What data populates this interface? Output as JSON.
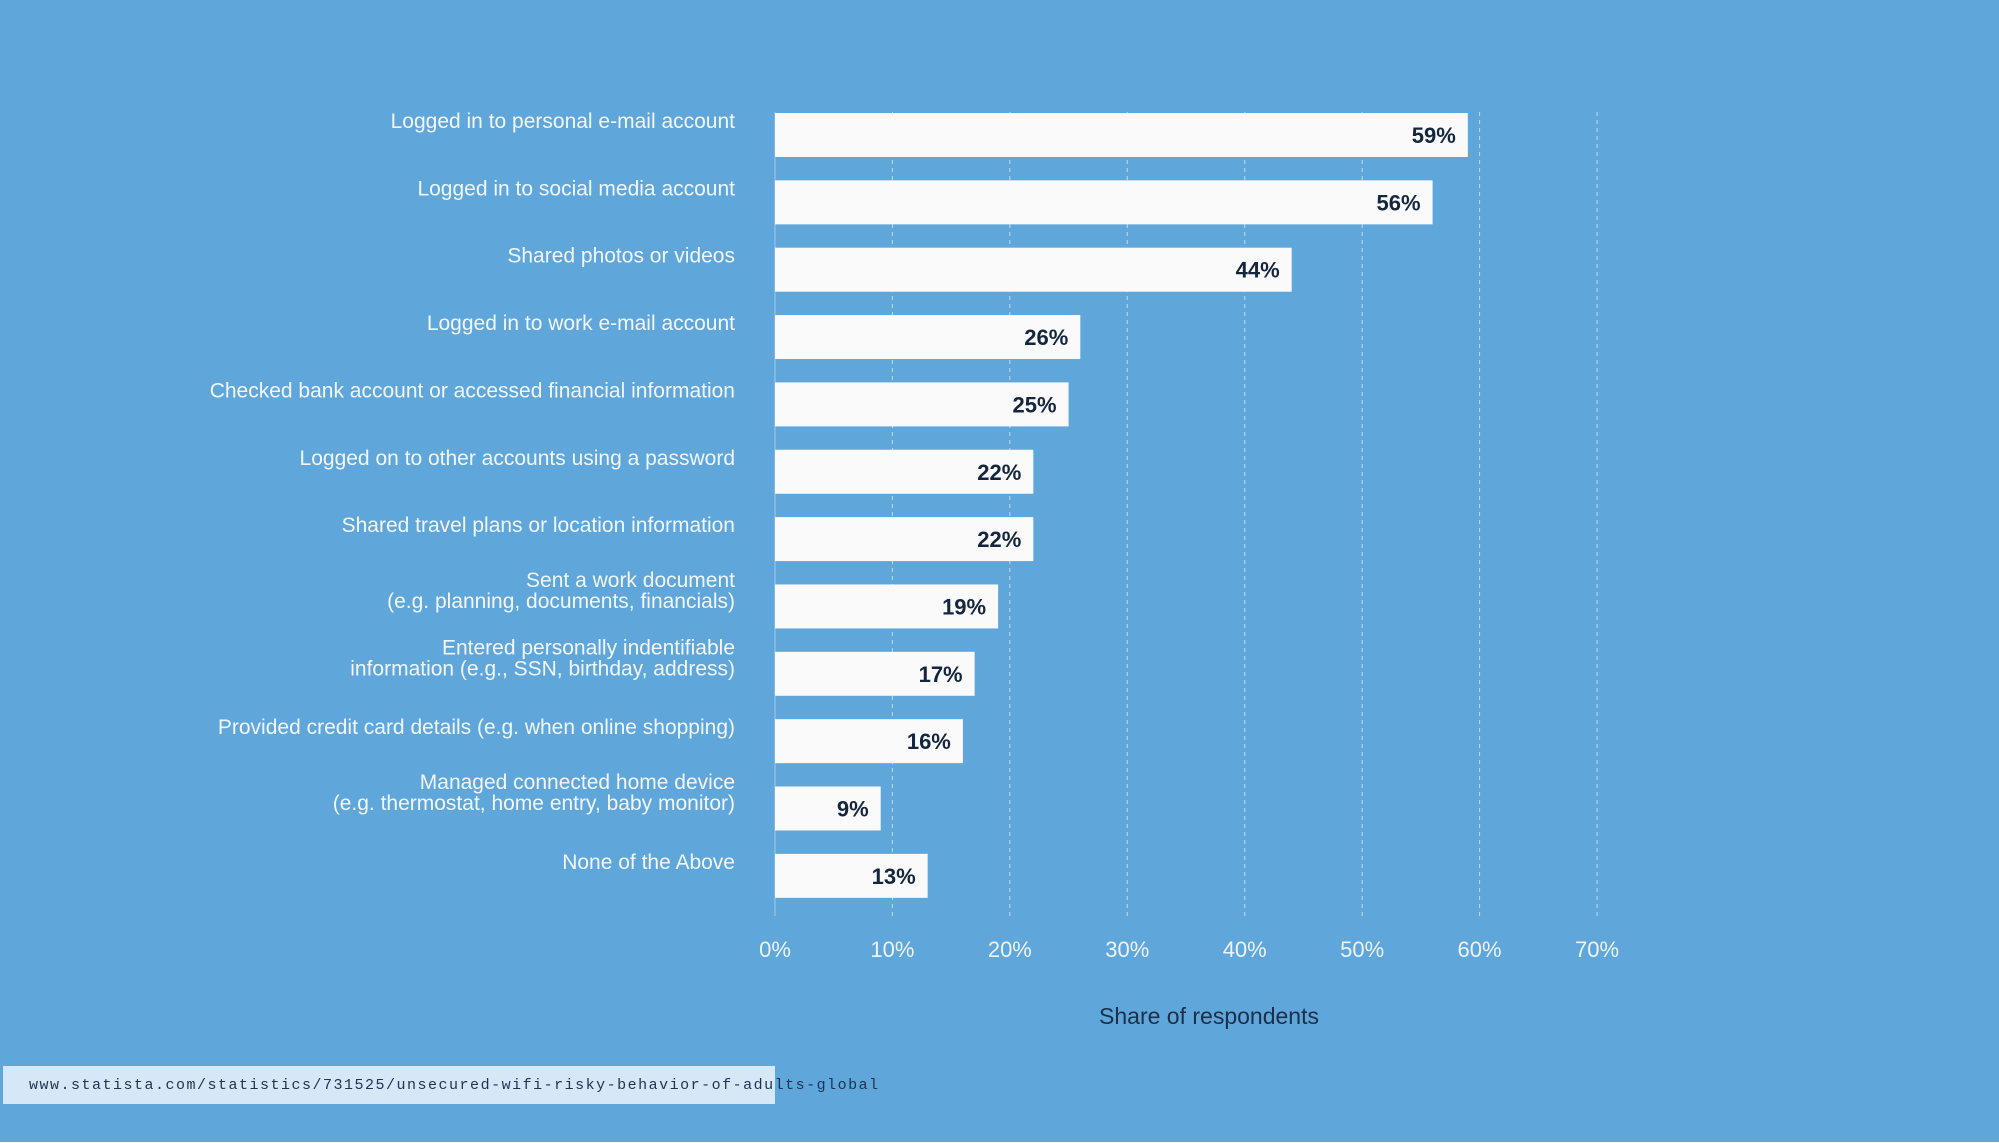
{
  "chart_data": {
    "type": "bar",
    "orientation": "horizontal",
    "categories": [
      [
        "Logged in to personal e-mail account"
      ],
      [
        "Logged in to social media account"
      ],
      [
        "Shared photos or videos"
      ],
      [
        "Logged in to work e-mail account"
      ],
      [
        "Checked bank account or accessed financial information"
      ],
      [
        "Logged on to other accounts using a password"
      ],
      [
        "Shared travel plans or location information"
      ],
      [
        "Sent a work document",
        "(e.g. planning, documents, financials)"
      ],
      [
        "Entered personally indentifiable",
        "information (e.g., SSN, birthday, address)"
      ],
      [
        "Provided credit card details (e.g. when online shopping)"
      ],
      [
        "Managed  connected home device",
        "(e.g. thermostat, home entry, baby monitor)"
      ],
      [
        "None of the Above"
      ]
    ],
    "values": [
      59,
      56,
      44,
      26,
      25,
      22,
      22,
      19,
      17,
      16,
      9,
      13
    ],
    "value_labels": [
      "59%",
      "56%",
      "44%",
      "26%",
      "25%",
      "22%",
      "22%",
      "19%",
      "17%",
      "16%",
      "9%",
      "13%"
    ],
    "xlim": [
      0,
      70
    ],
    "x_ticks": [
      "0%",
      "10%",
      "20%",
      "30%",
      "40%",
      "50%",
      "60%",
      "70%"
    ],
    "xlabel": "Share of respondents",
    "grid": "vertical dashed",
    "legend": "none"
  },
  "source": {
    "url": "www.statista.com/statistics/731525/unsecured-wifi-risky-behavior-of-adults-global"
  },
  "colors": {
    "background": "#5fa6da",
    "bar": "#fafafa",
    "grid": "#cfe3f4",
    "value_text": "#14263d",
    "axis_title": "#1b2f4b",
    "label_text": "#f3f7fb",
    "source_box": "#d6e8f7"
  }
}
